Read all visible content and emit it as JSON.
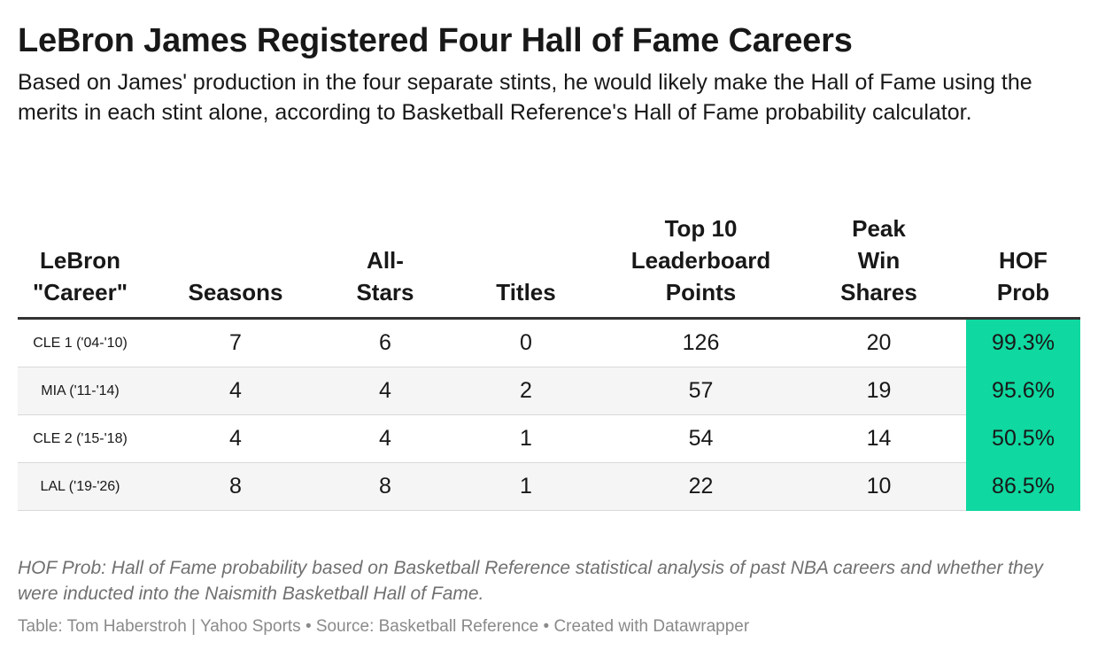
{
  "title": "LeBron James Registered Four Hall of Fame Careers",
  "subtitle": "Based on James' production in the four separate stints, he would likely make the Hall of Fame using the merits in each stint alone, according to Basketball Reference's Hall of Fame probability calculator.",
  "colors": {
    "highlight": "#0fd8a0",
    "row_alt": "#f5f5f5",
    "header_rule": "#333333"
  },
  "chart_data": {
    "type": "table",
    "columns": [
      [
        "LeBron",
        "\"Career\""
      ],
      [
        "Seasons"
      ],
      [
        "All-",
        "Stars"
      ],
      [
        "Titles"
      ],
      [
        "Top 10",
        "Leaderboard",
        "Points"
      ],
      [
        "Peak",
        "Win",
        "Shares"
      ],
      [
        "HOF",
        "Prob"
      ]
    ],
    "rows": [
      {
        "career": "CLE 1 ('04-'10)",
        "seasons": 7,
        "all_stars": 6,
        "titles": 0,
        "leaderboard_points": 126,
        "peak_win_shares": 20,
        "hof_prob": "99.3%"
      },
      {
        "career": "MIA ('11-'14)",
        "seasons": 4,
        "all_stars": 4,
        "titles": 2,
        "leaderboard_points": 57,
        "peak_win_shares": 19,
        "hof_prob": "95.6%"
      },
      {
        "career": "CLE 2 ('15-'18)",
        "seasons": 4,
        "all_stars": 4,
        "titles": 1,
        "leaderboard_points": 54,
        "peak_win_shares": 14,
        "hof_prob": "50.5%"
      },
      {
        "career": "LAL ('19-'26)",
        "seasons": 8,
        "all_stars": 8,
        "titles": 1,
        "leaderboard_points": 22,
        "peak_win_shares": 10,
        "hof_prob": "86.5%"
      }
    ]
  },
  "notes": "HOF Prob: Hall of Fame probability based on Basketball Reference statistical analysis of past NBA careers and whether they were inducted into the Naismith Basketball Hall of Fame.",
  "footer": "Table: Tom Haberstroh | Yahoo Sports • Source: Basketball Reference • Created with Datawrapper"
}
